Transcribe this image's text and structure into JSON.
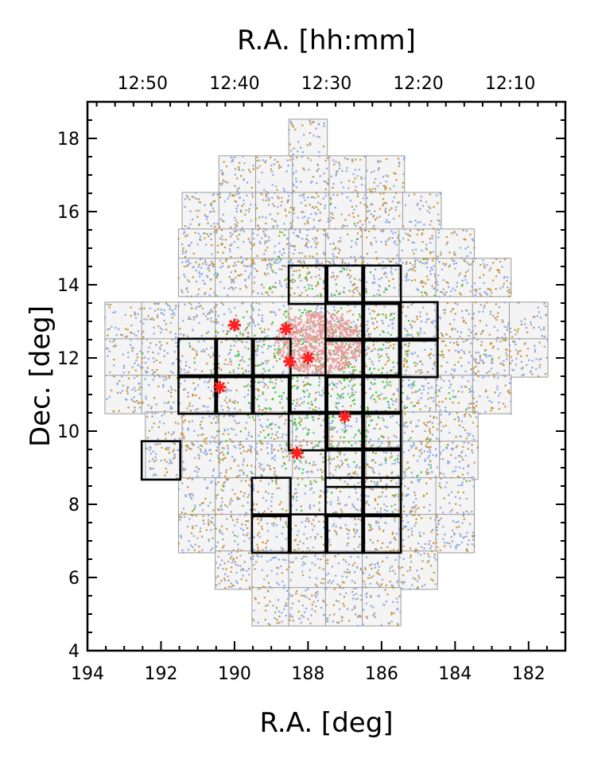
{
  "chart_data": {
    "type": "scatter",
    "title": "",
    "xlabel": "R.A. [deg]",
    "ylabel": "Dec. [deg]",
    "top_xlabel": "R.A. [hh:mm]",
    "xlim": [
      194,
      181
    ],
    "ylim": [
      4,
      19
    ],
    "x_ticks": [
      194,
      192,
      190,
      188,
      186,
      184,
      182
    ],
    "x_tick_labels": [
      "194",
      "192",
      "190",
      "188",
      "186",
      "184",
      "182"
    ],
    "y_ticks": [
      4,
      6,
      8,
      10,
      12,
      14,
      16,
      18
    ],
    "y_tick_labels": [
      "4",
      "6",
      "8",
      "10",
      "12",
      "14",
      "16",
      "18"
    ],
    "top_ticks_deg": [
      192.5,
      190.0,
      187.5,
      185.0,
      182.5
    ],
    "top_tick_labels": [
      "12:50",
      "12:40",
      "12:30",
      "12:20",
      "12:10"
    ],
    "grid": false,
    "tile_size_deg": 1.05,
    "survey_tiles": {
      "description": "tile rows: dec center, list of RA centers",
      "rows": [
        {
          "dec": 18.0,
          "ra": [
            188.0
          ]
        },
        {
          "dec": 17.0,
          "ra": [
            189.9,
            188.9,
            187.9,
            186.9,
            185.9
          ]
        },
        {
          "dec": 16.0,
          "ra": [
            190.9,
            189.9,
            188.9,
            187.9,
            186.9,
            185.9,
            184.9
          ]
        },
        {
          "dec": 15.0,
          "ra": [
            191.0,
            190.0,
            189.0,
            188.0,
            187.0,
            186.0,
            185.0,
            184.0
          ]
        },
        {
          "dec": 14.2,
          "ra": [
            191.0,
            190.0,
            189.0,
            188.0,
            187.0,
            186.0,
            185.0,
            184.0,
            183.0
          ]
        },
        {
          "dec": 13.0,
          "ra": [
            193.0,
            192.0,
            191.0,
            190.0,
            189.0,
            188.0,
            187.0,
            186.0,
            185.0,
            184.0,
            183.0,
            182.0
          ]
        },
        {
          "dec": 12.0,
          "ra": [
            193.0,
            192.0,
            191.0,
            190.0,
            189.0,
            188.0,
            187.0,
            186.0,
            185.0,
            184.0,
            183.0,
            182.0
          ]
        },
        {
          "dec": 11.0,
          "ra": [
            193.0,
            192.0,
            191.0,
            190.0,
            189.0,
            188.0,
            187.0,
            186.0,
            185.0,
            184.0,
            183.0
          ]
        },
        {
          "dec": 10.0,
          "ra": [
            191.9,
            190.9,
            189.9,
            188.9,
            187.9,
            186.9,
            185.9,
            184.9,
            183.9
          ]
        },
        {
          "dec": 9.2,
          "ra": [
            191.9,
            190.9,
            189.9,
            188.9,
            187.9,
            186.9,
            185.9,
            184.9,
            183.9
          ]
        },
        {
          "dec": 8.2,
          "ra": [
            191.0,
            190.0,
            189.0,
            188.0,
            187.0,
            186.0,
            185.0,
            184.0
          ]
        },
        {
          "dec": 7.2,
          "ra": [
            191.0,
            190.0,
            189.0,
            188.0,
            187.0,
            186.0,
            185.0,
            184.0
          ]
        },
        {
          "dec": 6.2,
          "ra": [
            190.0,
            189.0,
            188.0,
            187.0,
            186.0,
            185.0
          ]
        },
        {
          "dec": 5.2,
          "ra": [
            189.0,
            188.0,
            187.0,
            186.0
          ]
        }
      ]
    },
    "highlighted_tiles": [
      {
        "ra": 188.0,
        "dec": 14.0
      },
      {
        "ra": 187.0,
        "dec": 14.0
      },
      {
        "ra": 186.0,
        "dec": 14.0
      },
      {
        "ra": 187.0,
        "dec": 13.0
      },
      {
        "ra": 186.0,
        "dec": 13.0
      },
      {
        "ra": 185.0,
        "dec": 13.0
      },
      {
        "ra": 191.0,
        "dec": 12.0
      },
      {
        "ra": 190.0,
        "dec": 12.0
      },
      {
        "ra": 189.0,
        "dec": 12.0
      },
      {
        "ra": 187.0,
        "dec": 12.0
      },
      {
        "ra": 186.0,
        "dec": 12.0
      },
      {
        "ra": 185.0,
        "dec": 12.0
      },
      {
        "ra": 191.0,
        "dec": 11.0
      },
      {
        "ra": 190.0,
        "dec": 11.0
      },
      {
        "ra": 189.0,
        "dec": 11.0
      },
      {
        "ra": 188.0,
        "dec": 11.0
      },
      {
        "ra": 187.0,
        "dec": 11.0
      },
      {
        "ra": 186.0,
        "dec": 11.0
      },
      {
        "ra": 188.0,
        "dec": 10.0
      },
      {
        "ra": 187.0,
        "dec": 10.0
      },
      {
        "ra": 186.0,
        "dec": 10.0
      },
      {
        "ra": 187.0,
        "dec": 9.0
      },
      {
        "ra": 186.0,
        "dec": 9.0
      },
      {
        "ra": 192.0,
        "dec": 9.2
      },
      {
        "ra": 189.0,
        "dec": 8.2
      },
      {
        "ra": 187.0,
        "dec": 8.2
      },
      {
        "ra": 186.0,
        "dec": 8.2
      },
      {
        "ra": 189.0,
        "dec": 7.2
      },
      {
        "ra": 188.0,
        "dec": 7.2
      },
      {
        "ra": 187.0,
        "dec": 7.2
      },
      {
        "ra": 186.0,
        "dec": 7.2
      }
    ],
    "series": [
      {
        "name": "field sources (blue)",
        "color": "#8fa8e0",
        "kind": "uniform",
        "count": 3200
      },
      {
        "name": "field sources (gold)",
        "color": "#c8963c",
        "kind": "uniform",
        "count": 2000
      },
      {
        "name": "cluster members (green)",
        "color": "#3cc83c",
        "kind": "cluster",
        "center": [
          187.6,
          11.6
        ],
        "sigma": 1.5,
        "count": 500
      },
      {
        "name": "core sources (pink)",
        "color": "#e89898",
        "kind": "core",
        "center": [
          187.7,
          12.4
        ],
        "radius": 1.0,
        "count": 900
      }
    ],
    "markers": {
      "name": "bright objects (red stars)",
      "color": "#ff2020",
      "points": [
        {
          "ra": 190.0,
          "dec": 12.9
        },
        {
          "ra": 188.6,
          "dec": 12.8
        },
        {
          "ra": 188.5,
          "dec": 11.9
        },
        {
          "ra": 188.0,
          "dec": 12.0
        },
        {
          "ra": 190.4,
          "dec": 11.2
        },
        {
          "ra": 187.0,
          "dec": 10.4
        },
        {
          "ra": 188.3,
          "dec": 9.4
        }
      ]
    }
  }
}
